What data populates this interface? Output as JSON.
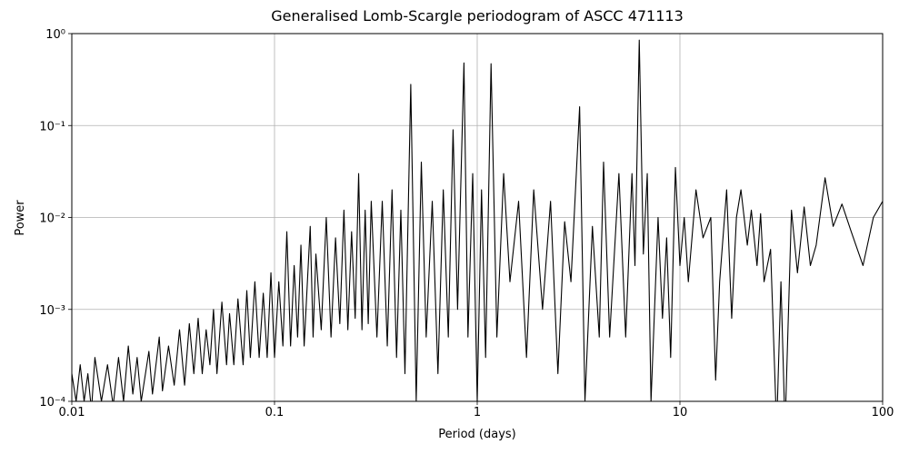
{
  "chart_data": {
    "type": "line",
    "title": "Generalised Lomb-Scargle periodogram of ASCC 471113",
    "x_label": "Period (days)",
    "y_label": "Power",
    "x_scale": "log",
    "y_scale": "log",
    "grid": true,
    "xlim": [
      0.01,
      100
    ],
    "ylim": [
      0.0001,
      1
    ],
    "xticks": [
      0.01,
      0.1,
      1,
      10,
      100
    ],
    "yticks": [
      {
        "value": 0.0001,
        "label": "10⁻⁴"
      },
      {
        "value": 0.001,
        "label": "10⁻³"
      },
      {
        "value": 0.01,
        "label": "10⁻²"
      },
      {
        "value": 0.1,
        "label": "10⁻¹"
      },
      {
        "value": 1,
        "label": "10⁰"
      }
    ],
    "x": [
      0.01,
      0.0105,
      0.011,
      0.0115,
      0.012,
      0.0125,
      0.013,
      0.014,
      0.015,
      0.016,
      0.017,
      0.018,
      0.019,
      0.02,
      0.021,
      0.022,
      0.024,
      0.025,
      0.027,
      0.028,
      0.03,
      0.032,
      0.034,
      0.036,
      0.038,
      0.04,
      0.042,
      0.044,
      0.046,
      0.048,
      0.05,
      0.052,
      0.055,
      0.058,
      0.06,
      0.063,
      0.066,
      0.07,
      0.073,
      0.076,
      0.08,
      0.084,
      0.088,
      0.092,
      0.096,
      0.1,
      0.105,
      0.11,
      0.115,
      0.12,
      0.125,
      0.13,
      0.135,
      0.14,
      0.15,
      0.155,
      0.16,
      0.17,
      0.18,
      0.19,
      0.2,
      0.21,
      0.22,
      0.23,
      0.24,
      0.25,
      0.26,
      0.27,
      0.28,
      0.29,
      0.3,
      0.32,
      0.34,
      0.36,
      0.38,
      0.4,
      0.42,
      0.44,
      0.47,
      0.5,
      0.53,
      0.56,
      0.6,
      0.64,
      0.68,
      0.72,
      0.76,
      0.8,
      0.86,
      0.9,
      0.95,
      1.0,
      1.05,
      1.1,
      1.17,
      1.25,
      1.35,
      1.45,
      1.6,
      1.75,
      1.9,
      2.1,
      2.3,
      2.5,
      2.7,
      2.9,
      3.2,
      3.4,
      3.7,
      4.0,
      4.2,
      4.5,
      5.0,
      5.4,
      5.8,
      6.0,
      6.3,
      6.6,
      6.9,
      7.2,
      7.8,
      8.2,
      8.6,
      9.0,
      9.5,
      10,
      10.5,
      11,
      12,
      13,
      14.2,
      15,
      15.7,
      17,
      18,
      19,
      20,
      21.5,
      22.5,
      24,
      25,
      26,
      28,
      30,
      31.5,
      33,
      35.5,
      38,
      41,
      44,
      47,
      52,
      57,
      63,
      70,
      80,
      90,
      100
    ],
    "series": [
      {
        "color": "#000000",
        "values": [
          0.0002,
          0.0001,
          0.00025,
          0.0001,
          0.0002,
          8e-05,
          0.0003,
          0.0001,
          0.00025,
          9e-05,
          0.0003,
          0.0001,
          0.0004,
          0.00012,
          0.0003,
          0.0001,
          0.00035,
          0.00012,
          0.0005,
          0.00013,
          0.0004,
          0.00015,
          0.0006,
          0.00015,
          0.0007,
          0.0002,
          0.0008,
          0.0002,
          0.0006,
          0.00025,
          0.001,
          0.0002,
          0.0012,
          0.00025,
          0.0009,
          0.00025,
          0.0013,
          0.00025,
          0.0016,
          0.0003,
          0.002,
          0.0003,
          0.0015,
          0.0003,
          0.0025,
          0.0003,
          0.002,
          0.0004,
          0.007,
          0.0004,
          0.003,
          0.0005,
          0.005,
          0.0004,
          0.008,
          0.0005,
          0.004,
          0.0006,
          0.01,
          0.0005,
          0.006,
          0.0007,
          0.012,
          0.0006,
          0.007,
          0.0008,
          0.03,
          0.0006,
          0.012,
          0.0007,
          0.015,
          0.0005,
          0.015,
          0.0004,
          0.02,
          0.0003,
          0.012,
          0.0002,
          0.28,
          0.0001,
          0.04,
          0.0005,
          0.015,
          0.0002,
          0.02,
          0.0005,
          0.09,
          0.001,
          0.48,
          0.0005,
          0.03,
          0.0001,
          0.02,
          0.0003,
          0.47,
          0.0005,
          0.03,
          0.002,
          0.015,
          0.0003,
          0.02,
          0.001,
          0.015,
          0.0002,
          0.009,
          0.002,
          0.16,
          0.0001,
          0.008,
          0.0005,
          0.04,
          0.0005,
          0.03,
          0.0005,
          0.03,
          0.003,
          0.85,
          0.004,
          0.03,
          0.0001,
          0.01,
          0.0008,
          0.006,
          0.0003,
          0.035,
          0.003,
          0.01,
          0.002,
          0.02,
          0.006,
          0.01,
          0.00017,
          0.002,
          0.02,
          0.0008,
          0.01,
          0.02,
          0.005,
          0.012,
          0.003,
          0.011,
          0.002,
          0.0045,
          5e-05,
          0.002,
          5e-05,
          0.012,
          0.0025,
          0.013,
          0.003,
          0.005,
          0.027,
          0.008,
          0.014,
          0.007,
          0.003,
          0.01,
          0.015
        ]
      }
    ]
  }
}
